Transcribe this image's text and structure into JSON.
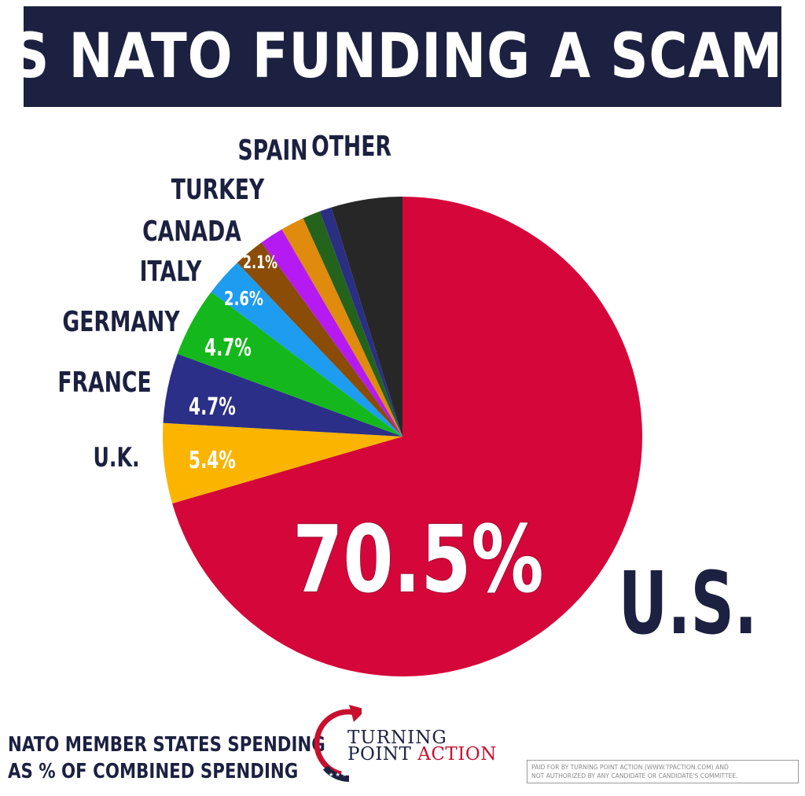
{
  "title": "IS NATO FUNDING A SCAM?",
  "footer": {
    "line1": "NATO MEMBER STATES SPENDING",
    "line2": "AS % OF COMBINED SPENDING"
  },
  "logo": {
    "line1": "TURNING",
    "line2_a": "POINT ",
    "line2_b": "ACTION"
  },
  "disclaimer": {
    "line1": "PAID FOR BY TURNING POINT ACTION (WWW.TPACTION.COM) AND",
    "line2": "NOT AUTHORIZED BY ANY CANDIDATE OR CANDIDATE'S COMMITTEE."
  },
  "chart_data": {
    "type": "pie",
    "slices": [
      {
        "name": "U.S.",
        "value": 70.5,
        "label": "70.5%",
        "color": "#d5073a"
      },
      {
        "name": "U.K.",
        "value": 5.4,
        "label": "5.4%",
        "color": "#fbb400"
      },
      {
        "name": "FRANCE",
        "value": 4.7,
        "label": "4.7%",
        "color": "#2b2f88"
      },
      {
        "name": "GERMANY",
        "value": 4.7,
        "label": "4.7%",
        "color": "#14b81c"
      },
      {
        "name": "ITALY",
        "value": 2.6,
        "label": "2.6%",
        "color": "#1d9cf0"
      },
      {
        "name": "CANADA",
        "value": 2.1,
        "label": "2.1%",
        "color": "#8a4c06"
      },
      {
        "name": "TURKEY",
        "value": 1.6,
        "label": "",
        "color": "#b51af2"
      },
      {
        "name": "SPAIN",
        "value": 1.6,
        "label": "",
        "color": "#e08a0e"
      },
      {
        "name": "",
        "value": 1.2,
        "label": "",
        "color": "#24631c"
      },
      {
        "name": "",
        "value": 0.8,
        "label": "",
        "color": "#2a2f84"
      },
      {
        "name": "OTHER",
        "value": 4.8,
        "label": "",
        "color": "#272727"
      }
    ]
  }
}
